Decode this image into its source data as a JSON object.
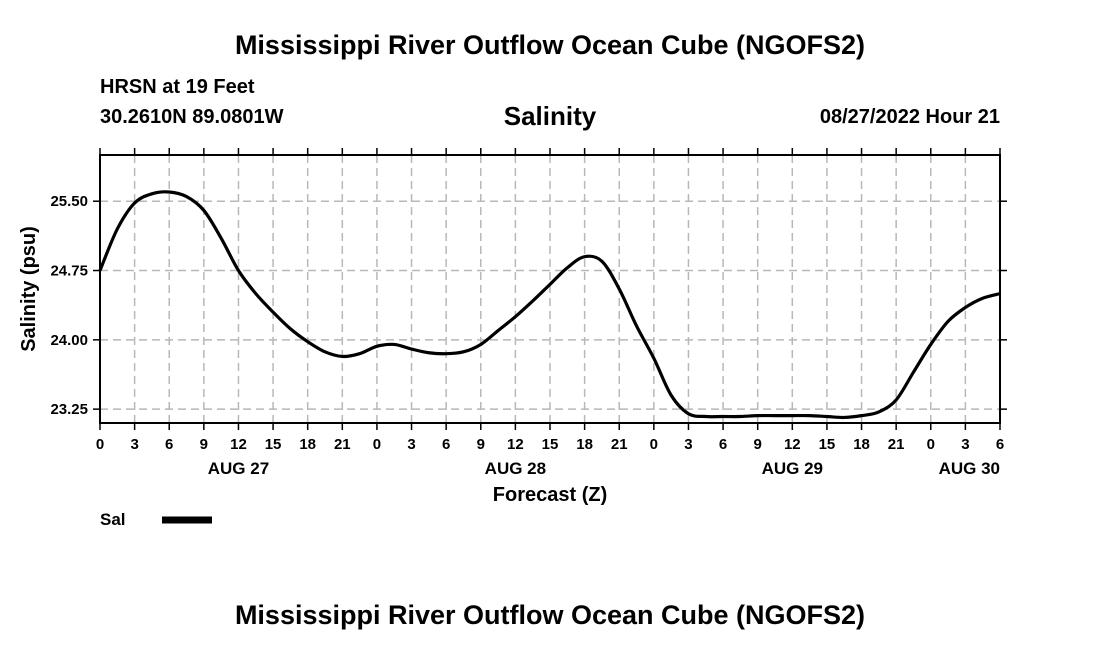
{
  "header": {
    "title": "Mississippi River Outflow Ocean Cube (NGOFS2)",
    "station": "HRSN at 19 Feet",
    "coordinates": "30.2610N  89.0801W",
    "subtitle": "Salinity",
    "datetime": "08/27/2022 Hour 21"
  },
  "footer": {
    "title": "Mississippi River Outflow Ocean Cube (NGOFS2)"
  },
  "chart_data": {
    "type": "line",
    "title": "Salinity",
    "xlabel": "Forecast (Z)",
    "ylabel": "Salinity (psu)",
    "xlim": [
      0,
      78
    ],
    "ylim": [
      23.1,
      26.0
    ],
    "grid": true,
    "x_ticks": [
      0,
      3,
      6,
      9,
      12,
      15,
      18,
      21,
      24,
      27,
      30,
      33,
      36,
      39,
      42,
      45,
      48,
      51,
      54,
      57,
      60,
      63,
      66,
      69,
      72,
      75,
      78
    ],
    "x_tick_labels": [
      "0",
      "3",
      "6",
      "9",
      "12",
      "15",
      "18",
      "21",
      "0",
      "3",
      "6",
      "9",
      "12",
      "15",
      "18",
      "21",
      "0",
      "3",
      "6",
      "9",
      "12",
      "15",
      "18",
      "21",
      "0",
      "3",
      "6"
    ],
    "date_labels": [
      {
        "x": 12,
        "label": "AUG 27"
      },
      {
        "x": 36,
        "label": "AUG 28"
      },
      {
        "x": 60,
        "label": "AUG 29"
      },
      {
        "x": 78,
        "label": "AUG 30"
      }
    ],
    "y_ticks": [
      23.25,
      24.0,
      24.75,
      25.5
    ],
    "y_tick_labels": [
      "23.25",
      "24.00",
      "24.75",
      "25.50"
    ],
    "series": [
      {
        "name": "Sal",
        "color": "#000000",
        "x": [
          0,
          1.5,
          3,
          4.5,
          6,
          7.5,
          9,
          10.5,
          12,
          13.5,
          15,
          16.5,
          18,
          19.5,
          21,
          22.5,
          24,
          25.5,
          27,
          28.5,
          30,
          31.5,
          33,
          34.5,
          36,
          37.5,
          39,
          40.5,
          42,
          43.5,
          45,
          46.5,
          48,
          49.5,
          51,
          52.5,
          54,
          55.5,
          57,
          58.5,
          60,
          61.5,
          63,
          64.5,
          66,
          67.5,
          69,
          70.5,
          72,
          73.5,
          75,
          76.5,
          78
        ],
        "values": [
          24.75,
          25.2,
          25.48,
          25.58,
          25.6,
          25.55,
          25.4,
          25.1,
          24.75,
          24.5,
          24.3,
          24.12,
          23.98,
          23.87,
          23.82,
          23.85,
          23.93,
          23.95,
          23.9,
          23.86,
          23.85,
          23.87,
          23.95,
          24.1,
          24.25,
          24.42,
          24.6,
          24.78,
          24.9,
          24.85,
          24.55,
          24.15,
          23.8,
          23.4,
          23.2,
          23.17,
          23.17,
          23.17,
          23.18,
          23.18,
          23.18,
          23.18,
          23.17,
          23.16,
          23.18,
          23.22,
          23.35,
          23.65,
          23.95,
          24.2,
          24.35,
          24.45,
          24.5
        ]
      }
    ]
  },
  "legend": {
    "label": "Sal"
  }
}
